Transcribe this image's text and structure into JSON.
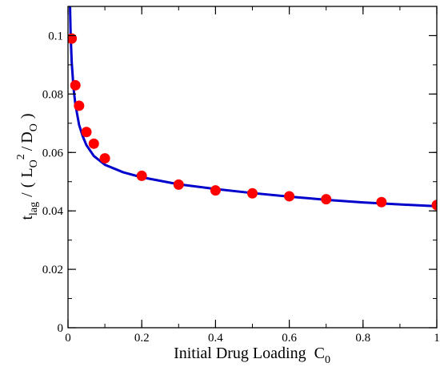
{
  "chart_data": {
    "type": "scatter",
    "title": "",
    "xlabel": {
      "main": "Initial Drug Loading",
      "var": "C",
      "sub": "0"
    },
    "ylabel": {
      "t": "t",
      "t_sub": "lag",
      "sep": "/",
      "open": "(",
      "L": "L",
      "L_sub": "O",
      "L_sup": "2",
      "slash": "/",
      "D": "D",
      "D_sub": "O",
      "close": ")"
    },
    "xlim": [
      0,
      1
    ],
    "ylim": [
      0,
      0.11
    ],
    "x_ticks": [
      0,
      0.2,
      0.4,
      0.6,
      0.8,
      1
    ],
    "x_tick_labels": [
      "0",
      "0.2",
      "0.4",
      "0.6",
      "0.8",
      "1"
    ],
    "y_ticks": [
      0,
      0.02,
      0.04,
      0.06,
      0.08,
      0.1
    ],
    "y_tick_labels": [
      "0",
      "0.02",
      "0.04",
      "0.06",
      "0.08",
      "0.1"
    ],
    "x_minor_step": 0.1,
    "y_minor_step": 0.01,
    "grid": false,
    "legend": "none",
    "series": [
      {
        "kind": "points",
        "color": "#ff0000",
        "x": [
          0.01,
          0.02,
          0.03,
          0.05,
          0.07,
          0.1,
          0.2,
          0.3,
          0.4,
          0.5,
          0.6,
          0.7,
          0.85,
          1.0
        ],
        "y": [
          0.099,
          0.083,
          0.076,
          0.067,
          0.063,
          0.058,
          0.052,
          0.049,
          0.047,
          0.046,
          0.045,
          0.044,
          0.043,
          0.042
        ]
      },
      {
        "kind": "line",
        "color": "#0000cc",
        "x": [
          0.0055,
          0.007,
          0.01,
          0.015,
          0.02,
          0.03,
          0.04,
          0.05,
          0.07,
          0.1,
          0.15,
          0.2,
          0.3,
          0.4,
          0.5,
          0.6,
          0.7,
          0.8,
          0.9,
          1.0
        ],
        "y": [
          0.11,
          0.101,
          0.091,
          0.082,
          0.0765,
          0.0695,
          0.0655,
          0.0625,
          0.0588,
          0.0558,
          0.0532,
          0.0515,
          0.0491,
          0.0475,
          0.0461,
          0.0449,
          0.0438,
          0.0429,
          0.0422,
          0.0416
        ]
      }
    ]
  }
}
